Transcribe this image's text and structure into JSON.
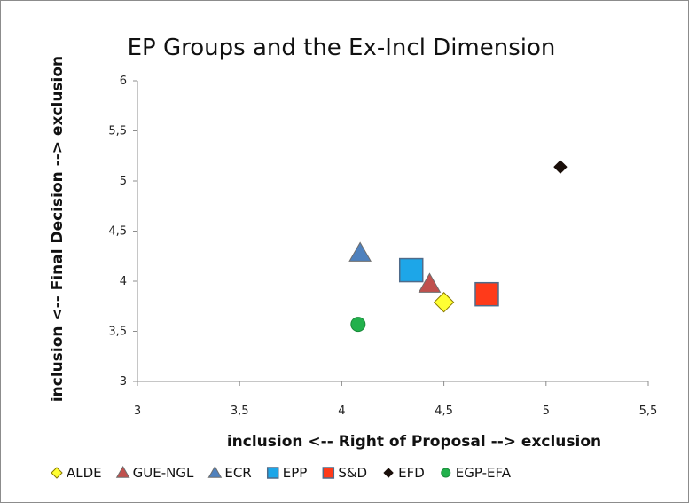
{
  "chart_data": {
    "type": "scatter",
    "title": "EP Groups and the Ex-Incl Dimension",
    "xlabel": "inclusion <-- Right of Proposal --> exclusion",
    "ylabel": "inclusion <-- Final Decision --> exclusion",
    "xlim": [
      3,
      5.5
    ],
    "ylim": [
      3,
      6
    ],
    "xticks": [
      3,
      3.5,
      4,
      4.5,
      5,
      5.5
    ],
    "xtick_labels": [
      "3",
      "3,5",
      "4",
      "4,5",
      "5",
      "5,5"
    ],
    "yticks": [
      3,
      3.5,
      4,
      4.5,
      5,
      5.5,
      6
    ],
    "ytick_labels": [
      "3",
      "3,5",
      "4",
      "4,5",
      "5",
      "5,5",
      "6"
    ],
    "grid": false,
    "legend_position": "bottom",
    "series": [
      {
        "name": "ALDE",
        "marker": "diamond",
        "color": "#ffff33",
        "x": 4.5,
        "y": 3.79
      },
      {
        "name": "GUE-NGL",
        "marker": "triangle",
        "color": "#c0504d",
        "x": 4.43,
        "y": 3.97
      },
      {
        "name": "ECR",
        "marker": "triangle",
        "color": "#4f81bd",
        "x": 4.09,
        "y": 4.28
      },
      {
        "name": "EPP",
        "marker": "square",
        "color": "#1da6e8",
        "x": 4.34,
        "y": 4.11
      },
      {
        "name": "S&D",
        "marker": "square",
        "color": "#ff3a1a",
        "x": 4.71,
        "y": 3.87
      },
      {
        "name": "EFD",
        "marker": "diamond-small",
        "color": "#1a0f0a",
        "x": 5.07,
        "y": 5.14
      },
      {
        "name": "EGP-EFA",
        "marker": "circle",
        "color": "#22b14c",
        "x": 4.08,
        "y": 3.57
      }
    ]
  }
}
